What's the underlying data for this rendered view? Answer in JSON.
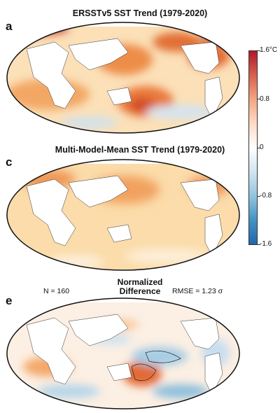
{
  "panels": [
    {
      "letter": "a",
      "title": "ERSSTv5 SST Trend (1979-2020)"
    },
    {
      "letter": "c",
      "title": "Multi-Model-Mean SST Trend (1979-2020)"
    },
    {
      "letter": "e",
      "title_line1": "Normalized",
      "title_line2": "Difference",
      "n_label": "N = 160",
      "rmse_label": "RMSE = 1.23 σ"
    }
  ],
  "colorbar": {
    "ticks": [
      "1.6°C",
      "0.8",
      "0",
      "-0.8",
      "-1.6"
    ],
    "colors": [
      "#b2182b",
      "#d6604d",
      "#f4a582",
      "#fddbc7",
      "#ffffff",
      "#d1e5f0",
      "#92c5de",
      "#4393c3",
      "#2166ac"
    ]
  }
}
